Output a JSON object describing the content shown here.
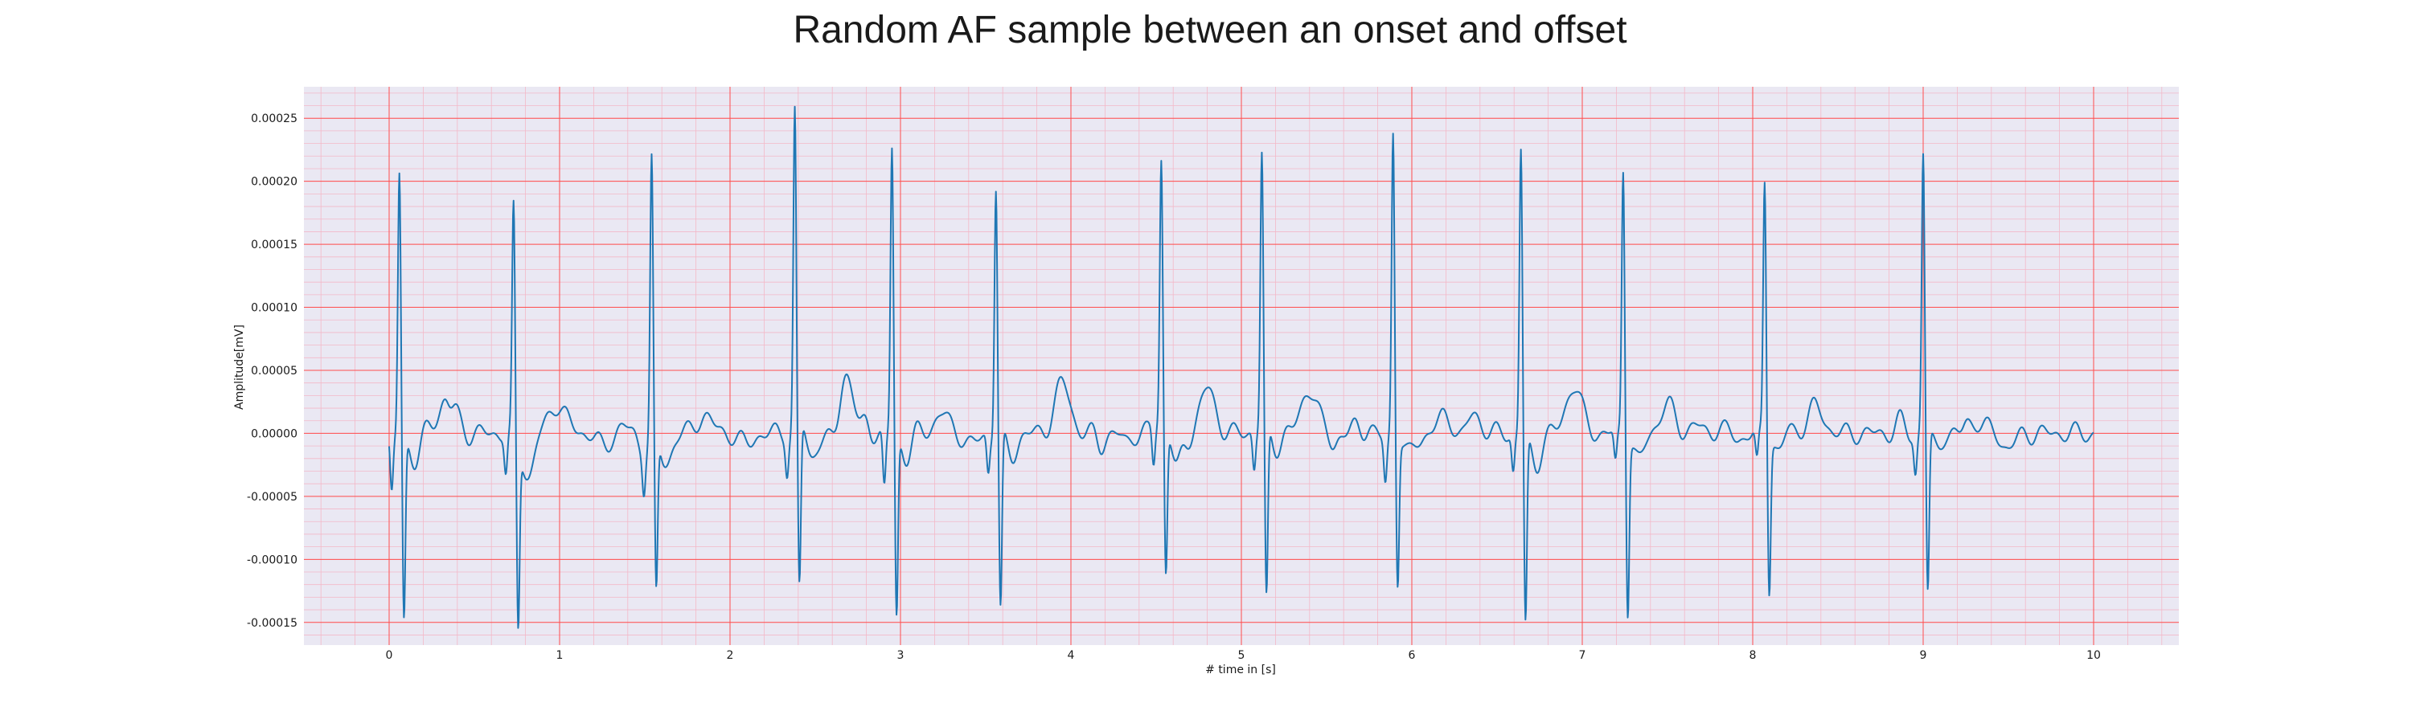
{
  "chart_data": {
    "type": "line",
    "title": "Random AF sample between an onset and offset",
    "xlabel": "# time in [s]",
    "ylabel": "Amplitude[mV]",
    "xlim": [
      -0.5,
      10.5
    ],
    "ylim": [
      -0.000168,
      0.000275
    ],
    "x_ticks": [
      0,
      1,
      2,
      3,
      4,
      5,
      6,
      7,
      8,
      9,
      10
    ],
    "x_tick_labels": [
      "0",
      "1",
      "2",
      "3",
      "4",
      "5",
      "6",
      "7",
      "8",
      "9",
      "10"
    ],
    "y_ticks": [
      -0.00015,
      -0.0001,
      -5e-05,
      0,
      5e-05,
      0.0001,
      0.00015,
      0.0002,
      0.00025
    ],
    "y_tick_labels": [
      "-0.00015",
      "-0.00010",
      "-0.00005",
      "0.00000",
      "0.00005",
      "0.00010",
      "0.00015",
      "0.00020",
      "0.00025"
    ],
    "grid": true,
    "major_grid_color": "#ff4d4d",
    "minor_grid_color": "#f3b8c8",
    "plot_background": "#eae8f3",
    "beats": [
      {
        "t": 0.06,
        "peak": 0.000209,
        "trough": -0.000146,
        "q": -4.7e-05
      },
      {
        "t": 0.73,
        "peak": 0.000181,
        "trough": -0.000145,
        "q": -3e-05
      },
      {
        "t": 1.54,
        "peak": 0.00022,
        "trough": -0.000124,
        "q": -3e-05
      },
      {
        "t": 2.38,
        "peak": 0.000254,
        "trough": -0.000129,
        "q": -2.8e-05
      },
      {
        "t": 2.95,
        "peak": 0.000227,
        "trough": -0.000145,
        "q": -4.5e-05
      },
      {
        "t": 3.56,
        "peak": 0.000198,
        "trough": -0.00014,
        "q": -3e-05
      },
      {
        "t": 4.53,
        "peak": 0.000208,
        "trough": -0.000118,
        "q": -3e-05
      },
      {
        "t": 5.12,
        "peak": 0.000217,
        "trough": -0.000138,
        "q": -3e-05
      },
      {
        "t": 5.89,
        "peak": 0.000242,
        "trough": -0.000114,
        "q": -3.5e-05
      },
      {
        "t": 6.64,
        "peak": 0.000227,
        "trough": -0.00015,
        "q": -3e-05
      },
      {
        "t": 7.24,
        "peak": 0.000211,
        "trough": -0.000137,
        "q": -2.5e-05
      },
      {
        "t": 8.07,
        "peak": 0.000202,
        "trough": -0.00012,
        "q": -2.5e-05
      },
      {
        "t": 9.0,
        "peak": 0.000219,
        "trough": -0.00013,
        "q": -3e-05
      }
    ],
    "t_waves": [
      {
        "t": 0.35,
        "amp": 3.3e-05
      },
      {
        "t": 1.0,
        "amp": 1.3e-05
      },
      {
        "t": 1.85,
        "amp": 1.4e-05
      },
      {
        "t": 2.7,
        "amp": 3.6e-05
      },
      {
        "t": 3.25,
        "amp": 1.8e-05
      },
      {
        "t": 3.95,
        "amp": 4e-05
      },
      {
        "t": 4.8,
        "amp": 3.5e-05
      },
      {
        "t": 5.4,
        "amp": 3.6e-05
      },
      {
        "t": 6.2,
        "amp": 1.4e-05
      },
      {
        "t": 6.95,
        "amp": 3.8e-05
      },
      {
        "t": 7.5,
        "amp": 2.2e-05
      },
      {
        "t": 8.37,
        "amp": 2.1e-05
      },
      {
        "t": 9.3,
        "amp": 1.4e-05
      }
    ],
    "series": [
      {
        "color": "#1f77b4",
        "t_start": 0.0,
        "t_end": 10.0,
        "sample_rate": 300
      }
    ]
  }
}
